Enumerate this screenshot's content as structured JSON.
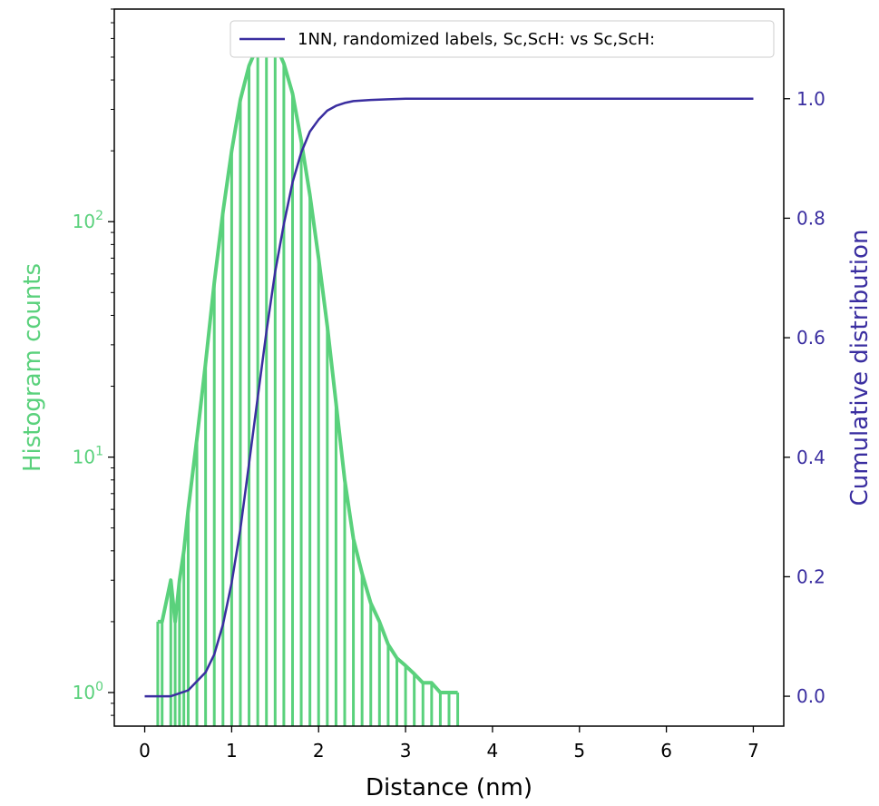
{
  "chart_data": {
    "type": "line",
    "title": "",
    "xlabel": "Distance (nm)",
    "ylabel_left": "Histogram counts",
    "ylabel_right": "Cumulative distribution",
    "xlim": [
      -0.35,
      7.35
    ],
    "ylim_left": [
      0.72,
      800
    ],
    "y_left_scale": "log",
    "ylim_right": [
      -0.05,
      1.15
    ],
    "x_ticks": [
      0,
      1,
      2,
      3,
      4,
      5,
      6,
      7
    ],
    "x_tick_labels": [
      "0",
      "1",
      "2",
      "3",
      "4",
      "5",
      "6",
      "7"
    ],
    "y_left_ticks": [
      1,
      10,
      100
    ],
    "y_left_tick_labels": [
      {
        "base": "10",
        "exp": "0"
      },
      {
        "base": "10",
        "exp": "1"
      },
      {
        "base": "10",
        "exp": "2"
      }
    ],
    "y_right_ticks": [
      0.0,
      0.2,
      0.4,
      0.6,
      0.8,
      1.0
    ],
    "y_right_tick_labels": [
      "0.0",
      "0.2",
      "0.4",
      "0.6",
      "0.8",
      "1.0"
    ],
    "grid": false,
    "legend_position": "top-right",
    "colors": {
      "histogram": "#5ad17c",
      "cumulative": "#3a2ea0",
      "axes": "#000000"
    },
    "series": [
      {
        "axis": "left",
        "kind": "histogram",
        "color": "#5ad17c",
        "x": [
          0.15,
          0.2,
          0.3,
          0.35,
          0.4,
          0.45,
          0.5,
          0.6,
          0.7,
          0.8,
          0.9,
          1.0,
          1.1,
          1.2,
          1.3,
          1.4,
          1.5,
          1.6,
          1.7,
          1.8,
          1.9,
          2.0,
          2.1,
          2.2,
          2.3,
          2.4,
          2.5,
          2.6,
          2.7,
          2.8,
          2.9,
          3.0,
          3.1,
          3.2,
          3.3,
          3.4,
          3.5,
          3.6
        ],
        "y": [
          2,
          2,
          3,
          2,
          3,
          4,
          6,
          12,
          25,
          55,
          110,
          200,
          330,
          460,
          560,
          600,
          570,
          470,
          350,
          220,
          130,
          70,
          36,
          17,
          8,
          4.5,
          3.2,
          2.4,
          2,
          1.6,
          1.4,
          1.3,
          1.2,
          1.1,
          1.1,
          1,
          1,
          1
        ]
      },
      {
        "axis": "right",
        "kind": "cdf",
        "name": "1NN, randomized labels, Sc,ScH: vs Sc,ScH:",
        "color": "#3a2ea0",
        "x": [
          0.0,
          0.3,
          0.5,
          0.7,
          0.8,
          0.9,
          1.0,
          1.1,
          1.2,
          1.3,
          1.4,
          1.5,
          1.6,
          1.7,
          1.8,
          1.9,
          2.0,
          2.1,
          2.2,
          2.3,
          2.4,
          2.6,
          2.8,
          3.0,
          3.5,
          4.0,
          5.0,
          6.0,
          7.0
        ],
        "y": [
          0.0,
          0.0,
          0.01,
          0.04,
          0.07,
          0.12,
          0.19,
          0.28,
          0.39,
          0.5,
          0.61,
          0.71,
          0.79,
          0.86,
          0.91,
          0.945,
          0.965,
          0.98,
          0.988,
          0.993,
          0.996,
          0.998,
          0.999,
          1.0,
          1.0,
          1.0,
          1.0,
          1.0,
          1.0
        ]
      }
    ]
  }
}
